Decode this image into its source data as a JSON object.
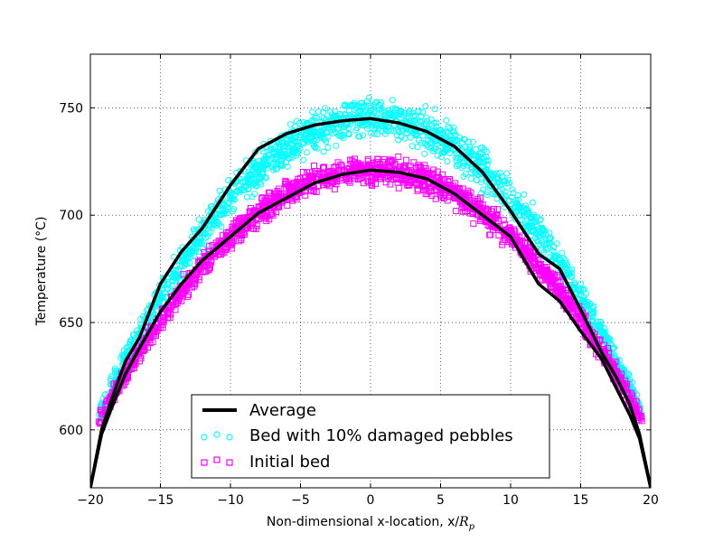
{
  "chart_data": {
    "type": "scatter",
    "xlabel": "Non-dimensional x-location, x/",
    "xlabel_math": "R",
    "xlabel_math_sub": "p",
    "ylabel": "Temperature (°C)",
    "xlim": [
      -20,
      20
    ],
    "ylim": [
      573,
      775
    ],
    "x_ticks": [
      -20,
      -15,
      -10,
      -5,
      0,
      5,
      10,
      15,
      20
    ],
    "x_tick_labels": [
      "−20",
      "−15",
      "−10",
      "−5",
      "0",
      "5",
      "10",
      "15",
      "20"
    ],
    "y_ticks": [
      600,
      650,
      700,
      750
    ],
    "y_tick_labels": [
      "600",
      "650",
      "700",
      "750"
    ],
    "grid": true,
    "legend_position": "lower-center",
    "series": [
      {
        "name": "Average",
        "kind": "line",
        "color": "#000000",
        "x": [
          -20,
          -19.2,
          -18.5,
          -17.5,
          -16.5,
          -15,
          -13.5,
          -12,
          -10,
          -8,
          -6,
          -4,
          -2,
          0,
          2,
          4,
          6,
          8,
          10,
          12,
          13.5,
          15,
          16.5,
          17.5,
          18.5,
          19.2,
          20
        ],
        "y": [
          573,
          600,
          614,
          632,
          643,
          668,
          683,
          694,
          714,
          731,
          738,
          742,
          744,
          745,
          743,
          739,
          732,
          720,
          702,
          682,
          675,
          656,
          636,
          625,
          612,
          598,
          573
        ]
      },
      {
        "name": "Average",
        "kind": "line",
        "color": "#000000",
        "x": [
          -20,
          -19.2,
          -18.5,
          -17.5,
          -16.5,
          -15,
          -13.5,
          -12,
          -10,
          -8,
          -6,
          -4,
          -2,
          0,
          2,
          4,
          6,
          8,
          10,
          12,
          13.5,
          15,
          16.5,
          17.5,
          18.5,
          19.2,
          20
        ],
        "y": [
          573,
          598,
          610,
          626,
          638,
          655,
          668,
          679,
          690,
          701,
          708,
          715,
          719,
          721,
          720,
          717,
          710,
          700,
          690,
          668,
          660,
          646,
          633,
          620,
          607,
          596,
          573
        ]
      },
      {
        "name": "Bed with 10% damaged pebbles",
        "kind": "scatter",
        "marker": "circle",
        "color": "#00ffff",
        "center": 745,
        "spread": 9,
        "edge": 605
      },
      {
        "name": "Initial bed",
        "kind": "scatter",
        "marker": "square",
        "color": "#ff00ff",
        "center": 721,
        "spread": 6,
        "edge": 603
      }
    ],
    "legend": [
      {
        "label": "Average",
        "marker": "line",
        "color": "#000000"
      },
      {
        "label": "Bed with 10% damaged pebbles",
        "marker": "circle",
        "color": "#00ffff"
      },
      {
        "label": "Initial bed",
        "marker": "square",
        "color": "#ff00ff"
      }
    ]
  }
}
